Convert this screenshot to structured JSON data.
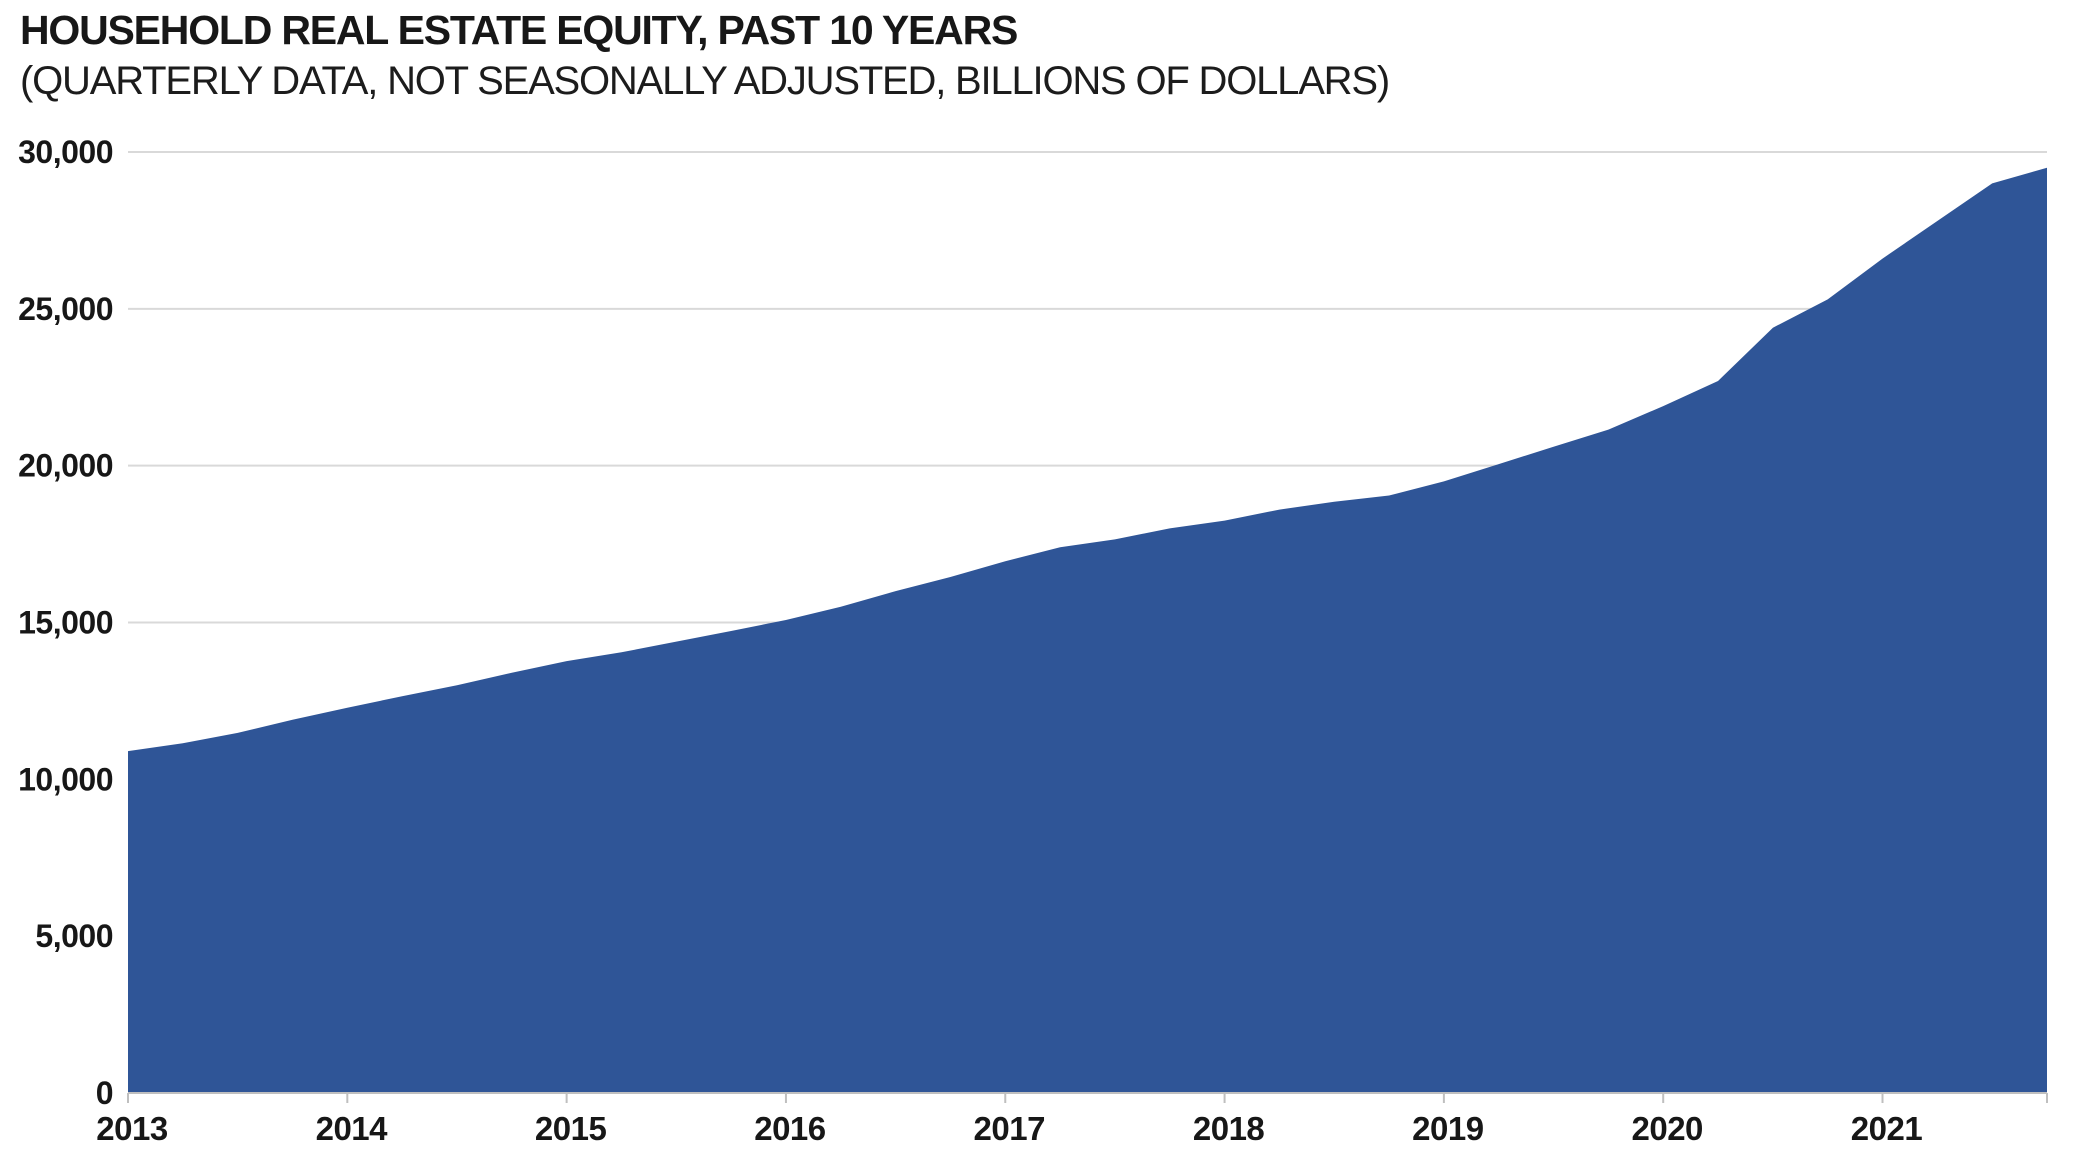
{
  "header": {
    "title": "HOUSEHOLD REAL ESTATE EQUITY, PAST 10 YEARS",
    "subtitle": "(QUARTERLY DATA, NOT SEASONALLY ADJUSTED, BILLIONS OF DOLLARS)"
  },
  "colors": {
    "area_fill": "#2F5597",
    "gridline": "#D9D9D9",
    "axis_line": "#BFBFBF",
    "tick_mark": "#BFBFBF",
    "text": "#171717"
  },
  "chart_data": {
    "type": "area",
    "title": "HOUSEHOLD REAL ESTATE EQUITY, PAST 10 YEARS",
    "subtitle": "(QUARTERLY DATA, NOT SEASONALLY ADJUSTED, BILLIONS OF DOLLARS)",
    "xlabel": "",
    "ylabel": "Billions of dollars",
    "ylim": [
      0,
      30000
    ],
    "y_tick_step": 5000,
    "y_tick_labels": [
      "0",
      "5,000",
      "10,000",
      "15,000",
      "20,000",
      "25,000",
      "30,000"
    ],
    "x_tick_labels": [
      "2013",
      "2014",
      "2015",
      "2016",
      "2017",
      "2018",
      "2019",
      "2020",
      "2021"
    ],
    "grid": "horizontal",
    "legend": "none",
    "x": [
      "2013 Q1",
      "2013 Q2",
      "2013 Q3",
      "2013 Q4",
      "2014 Q1",
      "2014 Q2",
      "2014 Q3",
      "2014 Q4",
      "2015 Q1",
      "2015 Q2",
      "2015 Q3",
      "2015 Q4",
      "2016 Q1",
      "2016 Q2",
      "2016 Q3",
      "2016 Q4",
      "2017 Q1",
      "2017 Q2",
      "2017 Q3",
      "2017 Q4",
      "2018 Q1",
      "2018 Q2",
      "2018 Q3",
      "2018 Q4",
      "2019 Q1",
      "2019 Q2",
      "2019 Q3",
      "2019 Q4",
      "2020 Q1",
      "2020 Q2",
      "2020 Q3",
      "2020 Q4",
      "2021 Q1",
      "2021 Q2",
      "2021 Q3",
      "2021 Q4"
    ],
    "series": [
      {
        "name": "Household real estate equity ($B)",
        "values": [
          10900,
          11150,
          11480,
          11900,
          12280,
          12650,
          13000,
          13400,
          13770,
          14050,
          14390,
          14730,
          15080,
          15500,
          16000,
          16450,
          16950,
          17400,
          17650,
          18000,
          18250,
          18600,
          18850,
          19050,
          19500,
          20050,
          20600,
          21150,
          21900,
          22700,
          24400,
          25300,
          26600,
          27800,
          29000,
          29500
        ]
      }
    ]
  }
}
